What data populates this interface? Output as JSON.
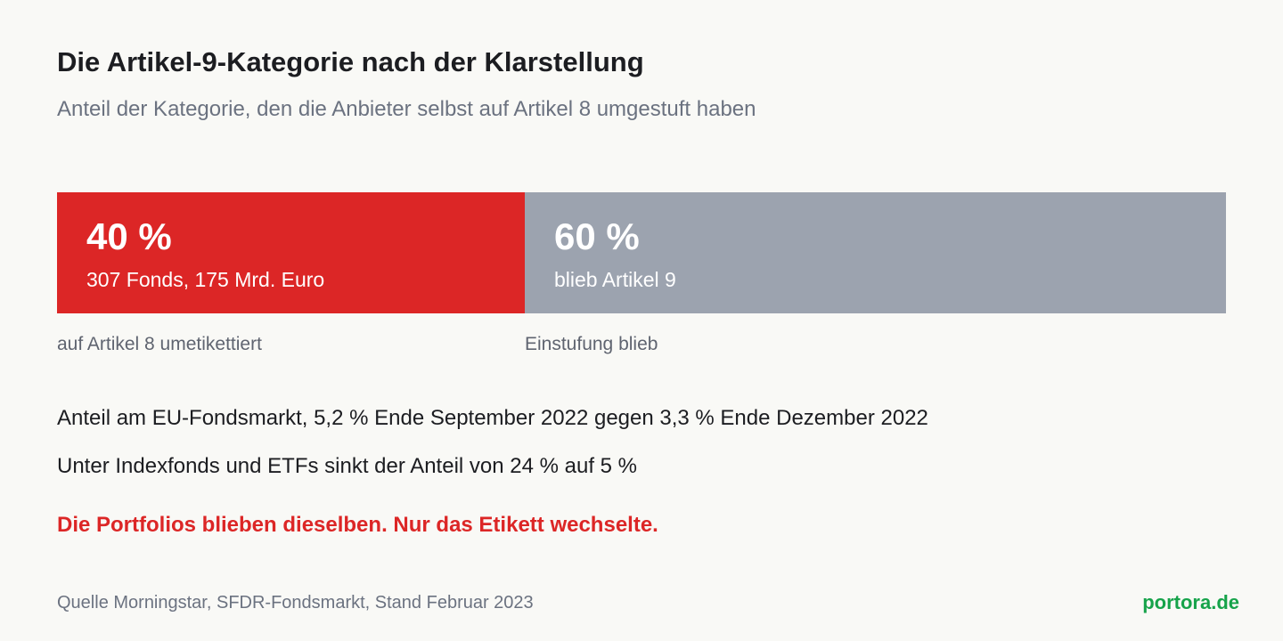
{
  "header": {
    "title": "Die Artikel-9-Kategorie nach der Klarstellung",
    "subtitle": "Anteil der Kategorie, den die Anbieter selbst auf Artikel 8 umgestuft haben"
  },
  "chart_data": {
    "type": "bar",
    "orientation": "horizontal-stacked",
    "total": 100,
    "segments": [
      {
        "value": 40,
        "value_label": "40 %",
        "detail": "307 Fonds, 175 Mrd. Euro",
        "label": "auf Artikel 8 umetikettiert",
        "color": "#dc2626"
      },
      {
        "value": 60,
        "value_label": "60 %",
        "detail": "blieb Artikel 9",
        "label": "Einstufung blieb",
        "color": "#9ca3af"
      }
    ]
  },
  "facts": [
    "Anteil am EU-Fondsmarkt, 5,2 % Ende September 2022 gegen 3,3 % Ende Dezember 2022",
    "Unter Indexfonds und ETFs sinkt der Anteil von 24 % auf 5 %"
  ],
  "emphasis": {
    "text": "Die Portfolios blieben dieselben. Nur das Etikett wechselte.",
    "color": "#dc2626"
  },
  "footer": {
    "source": "Quelle Morningstar, SFDR-Fondsmarkt, Stand Februar 2023",
    "brand": "portora.de",
    "brand_color": "#16a34a"
  }
}
